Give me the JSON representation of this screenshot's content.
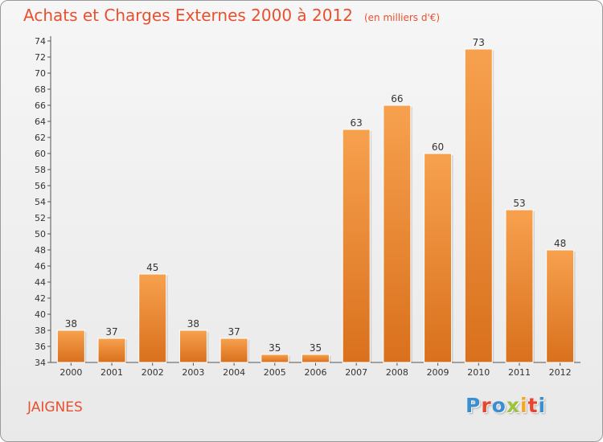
{
  "header": {
    "title": "Achats et Charges Externes 2000 à 2012",
    "subtitle": "(en milliers d'€)"
  },
  "footer": {
    "city": "JAIGNES",
    "logo_letters": [
      {
        "ch": "P",
        "color": "#3a8fd1"
      },
      {
        "ch": "r",
        "color": "#e8442e"
      },
      {
        "ch": "o",
        "color": "#3a8fd1"
      },
      {
        "ch": "x",
        "color": "#9bc43a"
      },
      {
        "ch": "i",
        "color": "#f5a623"
      },
      {
        "ch": "t",
        "color": "#e8442e"
      },
      {
        "ch": "i",
        "color": "#3a8fd1"
      }
    ]
  },
  "chart_data": {
    "type": "bar",
    "title": "Achats et Charges Externes 2000 à 2012",
    "subtitle": "(en milliers d'€)",
    "categories": [
      "2000",
      "2001",
      "2002",
      "2003",
      "2004",
      "2005",
      "2006",
      "2007",
      "2008",
      "2009",
      "2010",
      "2011",
      "2012"
    ],
    "values": [
      38,
      37,
      45,
      38,
      37,
      35,
      35,
      63,
      66,
      60,
      73,
      53,
      48
    ],
    "ylim": [
      34,
      74
    ],
    "ytick_step": 2,
    "grid": false,
    "bar_color_top": "#f7a14e",
    "bar_color_bottom": "#d9701d"
  }
}
